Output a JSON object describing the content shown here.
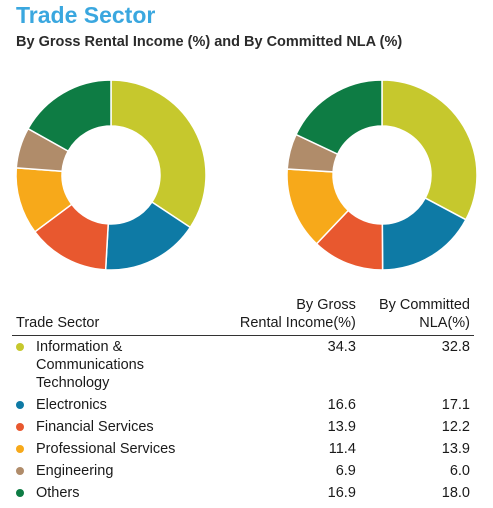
{
  "title": "Trade Sector",
  "subtitle": "By Gross Rental Income (%) and By Committed NLA (%)",
  "table": {
    "headers": [
      "Trade Sector",
      "By Gross Rental Income(%)",
      "By Committed NLA(%)"
    ],
    "header_lines": {
      "col2": [
        "By Gross",
        "Rental Income(%)"
      ],
      "col3": [
        "By Committed",
        "NLA(%)"
      ]
    }
  },
  "chart_data": {
    "type": "pie",
    "donut": true,
    "categories": [
      "Information & Communications Technology",
      "Electronics",
      "Financial Services",
      "Professional Services",
      "Engineering",
      "Others"
    ],
    "colors": [
      "#c6c82d",
      "#0e7aa5",
      "#e8582f",
      "#f7a91a",
      "#b08c6a",
      "#0e7c44"
    ],
    "series": [
      {
        "name": "By Gross Rental Income(%)",
        "values": [
          34.3,
          16.6,
          13.9,
          11.4,
          6.9,
          16.9
        ]
      },
      {
        "name": "By Committed NLA(%)",
        "values": [
          32.8,
          17.1,
          12.2,
          13.9,
          6.0,
          18.0
        ]
      }
    ],
    "value_labels": [
      [
        "34.3",
        "16.6",
        "13.9",
        "11.4",
        "6.9",
        "16.9"
      ],
      [
        "32.8",
        "17.1",
        "12.2",
        "13.9",
        "6.0",
        "18.0"
      ]
    ]
  }
}
